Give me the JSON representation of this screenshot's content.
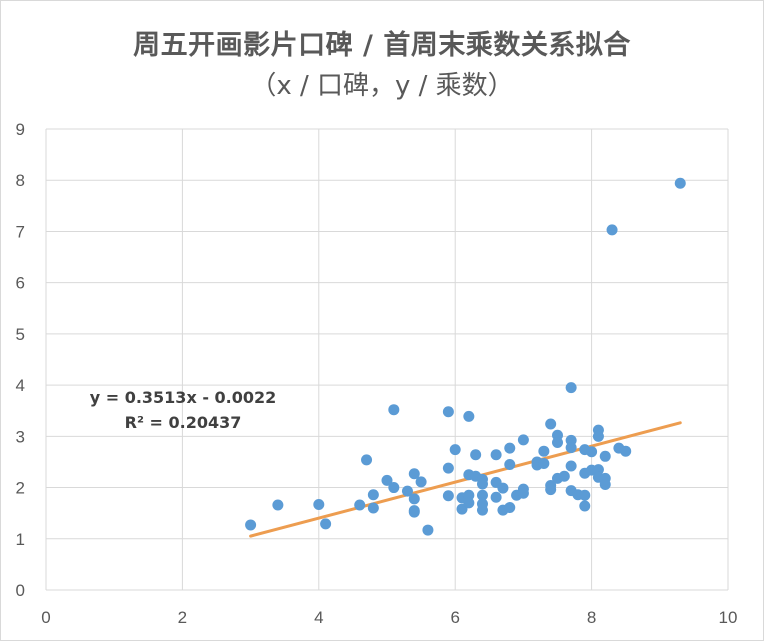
{
  "chart_data": {
    "type": "scatter",
    "title": "周五开画影片口碑 / 首周末乘数关系拟合",
    "subtitle": "（x / 口碑，y / 乘数）",
    "xlim": [
      0,
      10
    ],
    "ylim": [
      0,
      9
    ],
    "x_ticks": [
      "0",
      "2",
      "4",
      "6",
      "8",
      "10"
    ],
    "y_ticks": [
      "0",
      "1",
      "2",
      "3",
      "4",
      "5",
      "6",
      "7",
      "8",
      "9"
    ],
    "grid": true,
    "series": [
      {
        "color": "#5b9bd5",
        "points": [
          [
            3.0,
            1.27
          ],
          [
            3.4,
            1.66
          ],
          [
            4.0,
            1.67
          ],
          [
            4.1,
            1.29
          ],
          [
            4.6,
            1.66
          ],
          [
            4.7,
            2.54
          ],
          [
            4.8,
            1.86
          ],
          [
            4.8,
            1.6
          ],
          [
            5.0,
            2.14
          ],
          [
            5.1,
            2.0
          ],
          [
            5.1,
            3.52
          ],
          [
            5.3,
            1.93
          ],
          [
            5.4,
            2.27
          ],
          [
            5.4,
            1.78
          ],
          [
            5.4,
            1.55
          ],
          [
            5.4,
            1.52
          ],
          [
            5.5,
            2.11
          ],
          [
            5.6,
            1.17
          ],
          [
            5.9,
            3.48
          ],
          [
            5.9,
            2.38
          ],
          [
            5.9,
            1.84
          ],
          [
            6.0,
            2.74
          ],
          [
            6.1,
            1.8
          ],
          [
            6.1,
            1.58
          ],
          [
            6.2,
            3.39
          ],
          [
            6.2,
            2.25
          ],
          [
            6.2,
            1.85
          ],
          [
            6.2,
            1.7
          ],
          [
            6.3,
            2.64
          ],
          [
            6.3,
            2.22
          ],
          [
            6.4,
            2.16
          ],
          [
            6.4,
            2.07
          ],
          [
            6.4,
            1.85
          ],
          [
            6.4,
            1.68
          ],
          [
            6.4,
            1.56
          ],
          [
            6.6,
            2.64
          ],
          [
            6.6,
            2.1
          ],
          [
            6.6,
            1.81
          ],
          [
            6.7,
            1.99
          ],
          [
            6.7,
            1.56
          ],
          [
            6.8,
            2.77
          ],
          [
            6.8,
            2.45
          ],
          [
            6.8,
            1.61
          ],
          [
            6.9,
            1.85
          ],
          [
            7.0,
            2.93
          ],
          [
            7.0,
            1.97
          ],
          [
            7.0,
            1.89
          ],
          [
            7.2,
            2.5
          ],
          [
            7.2,
            2.44
          ],
          [
            7.3,
            2.71
          ],
          [
            7.3,
            2.47
          ],
          [
            7.4,
            3.24
          ],
          [
            7.4,
            2.04
          ],
          [
            7.4,
            1.96
          ],
          [
            7.5,
            3.02
          ],
          [
            7.5,
            2.88
          ],
          [
            7.5,
            2.18
          ],
          [
            7.6,
            2.22
          ],
          [
            7.7,
            3.95
          ],
          [
            7.7,
            2.92
          ],
          [
            7.7,
            2.78
          ],
          [
            7.7,
            2.42
          ],
          [
            7.7,
            1.94
          ],
          [
            7.8,
            1.86
          ],
          [
            7.9,
            2.74
          ],
          [
            7.9,
            2.28
          ],
          [
            7.9,
            1.85
          ],
          [
            7.9,
            1.64
          ],
          [
            8.0,
            2.7
          ],
          [
            8.0,
            2.34
          ],
          [
            8.1,
            3.12
          ],
          [
            8.1,
            3.0
          ],
          [
            8.1,
            2.35
          ],
          [
            8.1,
            2.2
          ],
          [
            8.2,
            2.61
          ],
          [
            8.2,
            2.18
          ],
          [
            8.2,
            2.06
          ],
          [
            8.3,
            7.03
          ],
          [
            8.4,
            2.77
          ],
          [
            8.5,
            2.71
          ],
          [
            9.3,
            7.94
          ]
        ]
      }
    ],
    "trendline": {
      "type": "linear",
      "slope": 0.3513,
      "intercept": -0.0022,
      "x_range": [
        3.0,
        9.3
      ],
      "color": "#ed9d50",
      "equation_label": "y = 0.3513x - 0.0022",
      "r2_label": "R² = 0.20437"
    }
  }
}
